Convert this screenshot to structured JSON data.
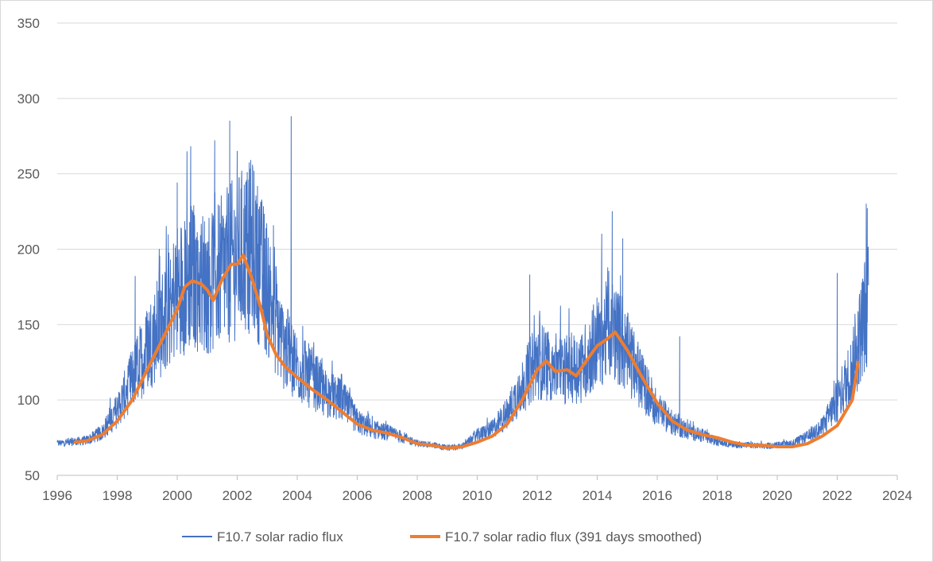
{
  "chart_data": {
    "type": "line",
    "title": "",
    "xlabel": "",
    "ylabel": "",
    "xlim": [
      1996,
      2024
    ],
    "ylim": [
      50,
      350
    ],
    "x_ticks": [
      "1996",
      "1998",
      "2000",
      "2002",
      "2004",
      "2006",
      "2008",
      "2010",
      "2012",
      "2014",
      "2016",
      "2018",
      "2020",
      "2022",
      "2024"
    ],
    "y_ticks": [
      "50",
      "100",
      "150",
      "200",
      "250",
      "300",
      "350"
    ],
    "grid": "horizontal",
    "legend_position": "bottom",
    "series": [
      {
        "name": "F10.7 solar radio flux",
        "color": "#4472C4",
        "style": "thin noisy daily line",
        "x": [
          1996.0,
          1996.5,
          1997.0,
          1997.5,
          1998.0,
          1998.5,
          1999.0,
          1999.5,
          2000.0,
          2000.5,
          2001.0,
          2001.5,
          2002.0,
          2002.5,
          2003.0,
          2003.5,
          2004.0,
          2004.5,
          2005.0,
          2005.5,
          2006.0,
          2006.5,
          2007.0,
          2007.5,
          2008.0,
          2008.5,
          2009.0,
          2009.5,
          2010.0,
          2010.5,
          2011.0,
          2011.5,
          2012.0,
          2012.5,
          2013.0,
          2013.5,
          2014.0,
          2014.5,
          2015.0,
          2015.5,
          2016.0,
          2016.5,
          2017.0,
          2017.5,
          2018.0,
          2018.5,
          2019.0,
          2019.5,
          2020.0,
          2020.5,
          2021.0,
          2021.5,
          2022.0,
          2022.5,
          2023.0
        ],
        "y": [
          71,
          72,
          73,
          78,
          92,
          112,
          132,
          148,
          168,
          178,
          172,
          180,
          190,
          196,
          170,
          135,
          120,
          112,
          102,
          98,
          85,
          80,
          78,
          75,
          71,
          70,
          68,
          69,
          76,
          80,
          90,
          108,
          124,
          120,
          118,
          120,
          136,
          145,
          128,
          110,
          93,
          84,
          79,
          76,
          72,
          70,
          70,
          69,
          70,
          71,
          75,
          81,
          98,
          118,
          160
        ],
        "spikes": [
          {
            "x": 1998.6,
            "y": 182
          },
          {
            "x": 1999.4,
            "y": 200
          },
          {
            "x": 2000.0,
            "y": 244
          },
          {
            "x": 2000.45,
            "y": 268
          },
          {
            "x": 2001.25,
            "y": 272
          },
          {
            "x": 2001.75,
            "y": 285
          },
          {
            "x": 2002.0,
            "y": 265
          },
          {
            "x": 2003.8,
            "y": 288
          },
          {
            "x": 2011.75,
            "y": 183
          },
          {
            "x": 2014.15,
            "y": 210
          },
          {
            "x": 2014.5,
            "y": 225
          },
          {
            "x": 2014.85,
            "y": 207
          },
          {
            "x": 2016.75,
            "y": 142
          },
          {
            "x": 2022.0,
            "y": 184
          },
          {
            "x": 2023.0,
            "y": 227
          }
        ]
      },
      {
        "name": "F10.7 solar radio flux (391 days smoothed)",
        "color": "#ED7D31",
        "style": "thick smooth line",
        "x": [
          1996.6,
          1997.0,
          1997.5,
          1998.0,
          1998.5,
          1999.0,
          1999.5,
          2000.0,
          2000.25,
          2000.5,
          2000.8,
          2001.0,
          2001.2,
          2001.5,
          2001.8,
          2002.0,
          2002.2,
          2002.5,
          2002.8,
          2003.0,
          2003.3,
          2003.6,
          2004.0,
          2004.5,
          2005.0,
          2005.5,
          2006.0,
          2006.5,
          2007.0,
          2007.5,
          2008.0,
          2008.5,
          2009.0,
          2009.5,
          2010.0,
          2010.5,
          2011.0,
          2011.5,
          2012.0,
          2012.3,
          2012.6,
          2013.0,
          2013.3,
          2013.6,
          2014.0,
          2014.3,
          2014.6,
          2015.0,
          2015.5,
          2016.0,
          2016.5,
          2017.0,
          2017.5,
          2018.0,
          2018.5,
          2019.0,
          2019.5,
          2020.0,
          2020.5,
          2021.0,
          2021.5,
          2022.0,
          2022.5
        ],
        "y": [
          72,
          73,
          77,
          86,
          100,
          120,
          140,
          160,
          175,
          179,
          177,
          173,
          166,
          180,
          190,
          190,
          196,
          180,
          160,
          143,
          130,
          122,
          115,
          107,
          100,
          92,
          84,
          80,
          78,
          75,
          71,
          70,
          68,
          69,
          72,
          76,
          84,
          100,
          120,
          126,
          119,
          120,
          116,
          125,
          136,
          140,
          145,
          133,
          115,
          98,
          86,
          80,
          77,
          75,
          72,
          70,
          70,
          69,
          69,
          71,
          76,
          83,
          100
        ],
        "extra": [
          {
            "x": 2022.7,
            "y": 125
          }
        ]
      }
    ]
  }
}
